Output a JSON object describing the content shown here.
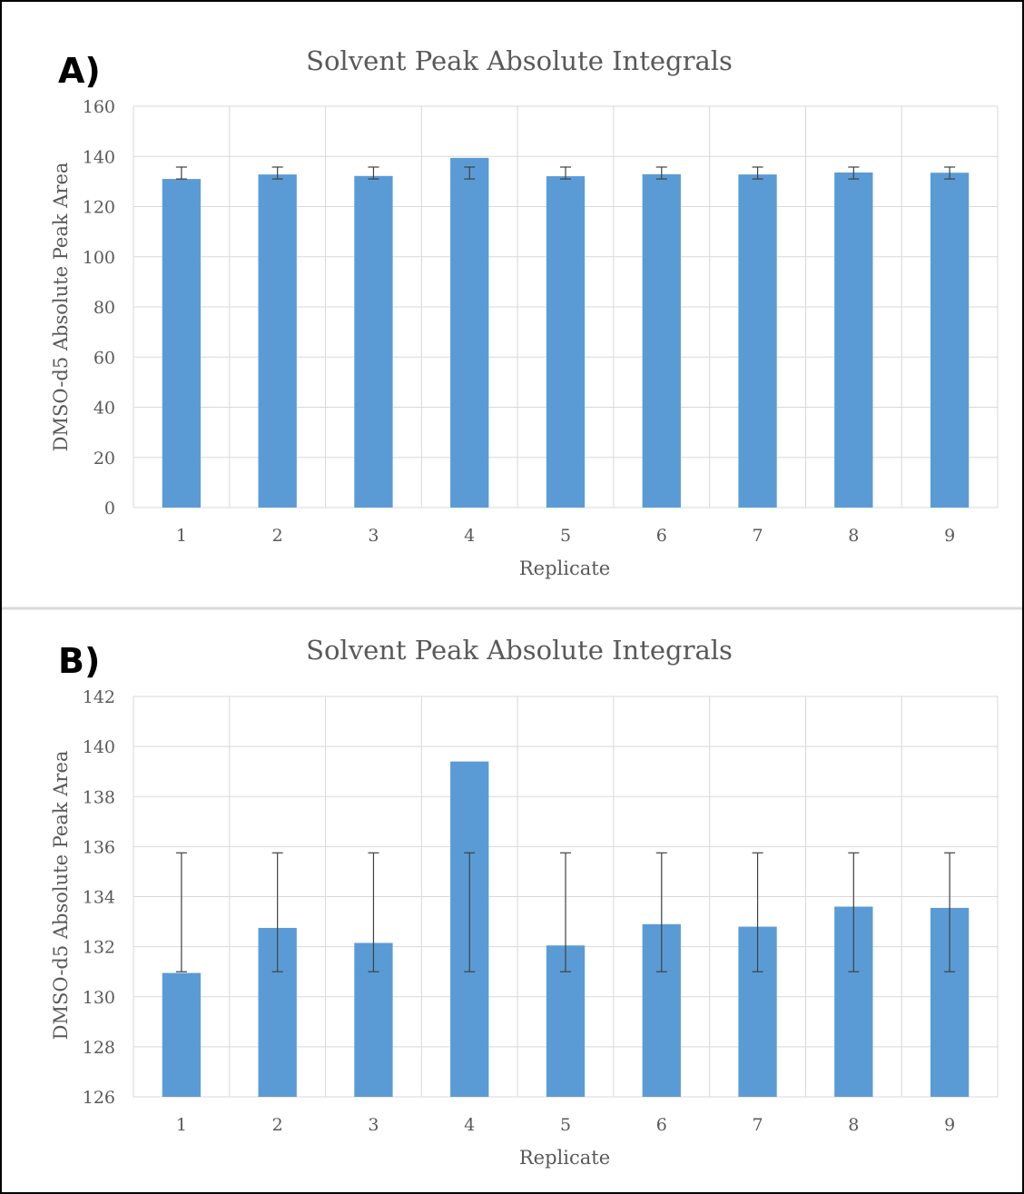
{
  "chart_data": [
    {
      "panel": "A)",
      "type": "bar",
      "title": "Solvent Peak Absolute Integrals",
      "xlabel": "Replicate",
      "ylabel": "DMSO-d5 Absolute Peak Area",
      "categories": [
        "1",
        "2",
        "3",
        "4",
        "5",
        "6",
        "7",
        "8",
        "9"
      ],
      "values": [
        131.0,
        132.8,
        132.2,
        139.4,
        132.1,
        132.9,
        132.8,
        133.6,
        133.5
      ],
      "error_bars": {
        "upper": 135.75,
        "lower": 131.0
      },
      "ylim": [
        0,
        160
      ],
      "yticks": [
        "0",
        "20",
        "40",
        "60",
        "80",
        "100",
        "120",
        "140",
        "160"
      ],
      "grid": true,
      "colors": {
        "bar": "#5b9bd5",
        "grid": "#d9d9d9",
        "error": "#404040"
      }
    },
    {
      "panel": "B)",
      "type": "bar",
      "title": "Solvent Peak Absolute Integrals",
      "xlabel": "Replicate",
      "ylabel": "DMSO-d5 Absolute Peak Area",
      "categories": [
        "1",
        "2",
        "3",
        "4",
        "5",
        "6",
        "7",
        "8",
        "9"
      ],
      "values": [
        130.95,
        132.75,
        132.15,
        139.4,
        132.05,
        132.9,
        132.8,
        133.6,
        133.55
      ],
      "error_bars": {
        "upper": 135.75,
        "lower": 131.0
      },
      "ylim": [
        126,
        142
      ],
      "yticks": [
        "126",
        "128",
        "130",
        "132",
        "134",
        "136",
        "138",
        "140",
        "142"
      ],
      "grid": true,
      "colors": {
        "bar": "#5b9bd5",
        "grid": "#d9d9d9",
        "error": "#404040"
      }
    }
  ]
}
